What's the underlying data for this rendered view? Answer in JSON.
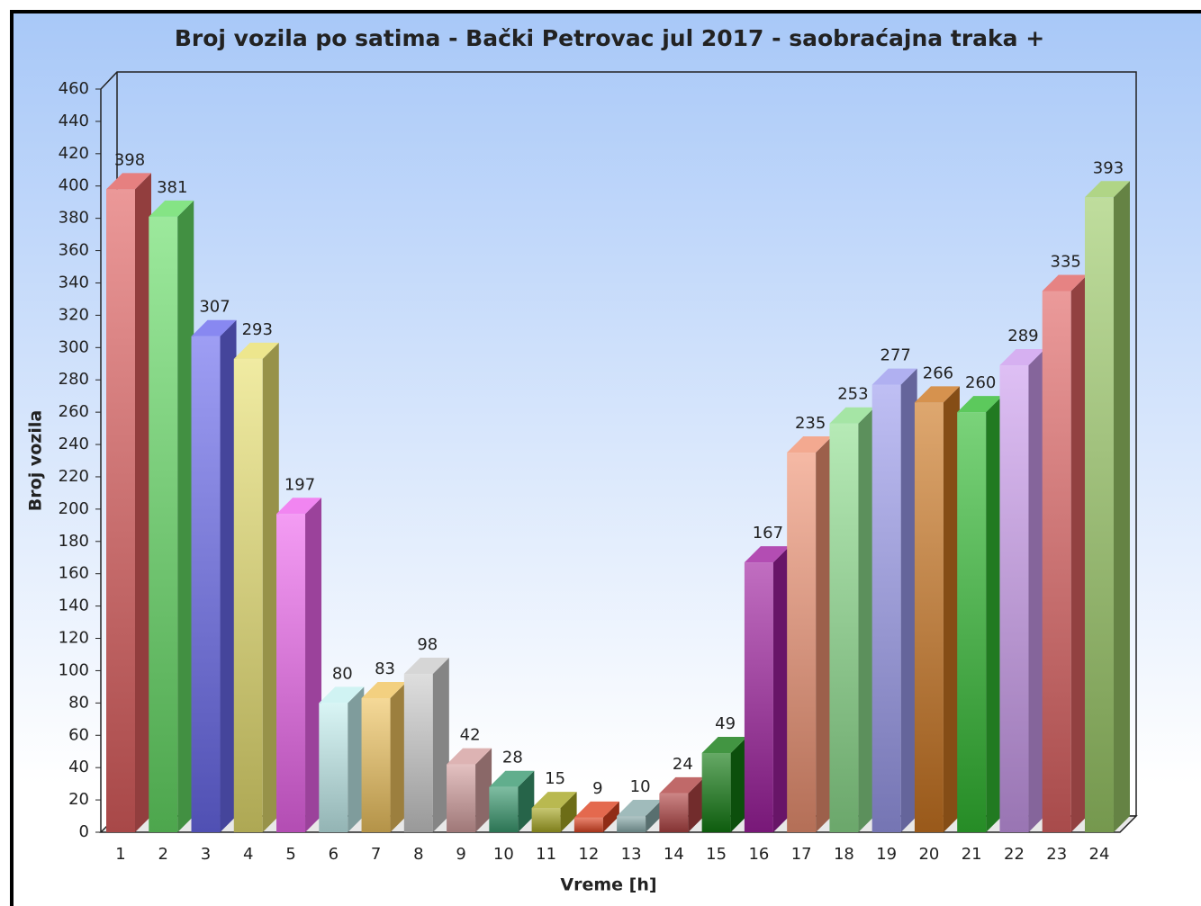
{
  "chart_data": {
    "type": "bar3d",
    "title": "Broj vozila po satima - Bački Petrovac  jul 2017 - saobraćajna traka +",
    "x_label": "Vreme [h]",
    "y_label": "Broj vozila",
    "categories": [
      "1",
      "2",
      "3",
      "4",
      "5",
      "6",
      "7",
      "8",
      "9",
      "10",
      "11",
      "12",
      "13",
      "14",
      "15",
      "16",
      "17",
      "18",
      "19",
      "20",
      "21",
      "22",
      "23",
      "24"
    ],
    "values": [
      398,
      381,
      307,
      293,
      197,
      80,
      83,
      98,
      42,
      28,
      15,
      9,
      10,
      24,
      49,
      167,
      235,
      253,
      277,
      266,
      260,
      289,
      335,
      393
    ],
    "colors": [
      "#e06060",
      "#66dd66",
      "#6a6aee",
      "#e8e070",
      "#ee66ee",
      "#c4f0f0",
      "#f0c460",
      "#cccccc",
      "#d4a0a0",
      "#3a9a70",
      "#a8a824",
      "#dd4422",
      "#88aaaa",
      "#b04444",
      "#137a13",
      "#a020a0",
      "#f09474",
      "#8ede8e",
      "#9c9cee",
      "#cc7722",
      "#33bb33",
      "#cc9cee",
      "#e06464",
      "#9cca68"
    ],
    "ylim": [
      0,
      460
    ],
    "yticks": [
      0,
      20,
      40,
      60,
      80,
      100,
      120,
      140,
      160,
      180,
      200,
      220,
      240,
      260,
      280,
      300,
      320,
      340,
      360,
      380,
      400,
      420,
      440,
      460
    ]
  }
}
